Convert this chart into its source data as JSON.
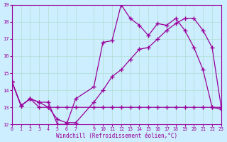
{
  "xlabel": "Windchill (Refroidissement éolien,°C)",
  "background_color": "#cceeff",
  "grid_color": "#b0ddd0",
  "line_color": "#990099",
  "xlim": [
    0,
    23
  ],
  "ylim": [
    12,
    19
  ],
  "xticks": [
    0,
    1,
    2,
    3,
    4,
    5,
    6,
    7,
    9,
    10,
    11,
    12,
    13,
    14,
    15,
    16,
    17,
    18,
    19,
    20,
    21,
    22,
    23
  ],
  "yticks": [
    12,
    13,
    14,
    15,
    16,
    17,
    18,
    19
  ],
  "line1_x": [
    0,
    1,
    2,
    3,
    4,
    5,
    6,
    7,
    9,
    10,
    11,
    12,
    13,
    14,
    15,
    16,
    17,
    18,
    19,
    20,
    21,
    22,
    23
  ],
  "line1_y": [
    14.5,
    13.1,
    13.5,
    13.0,
    13.0,
    13.0,
    13.0,
    13.0,
    13.0,
    13.0,
    13.0,
    13.0,
    13.0,
    13.0,
    13.0,
    13.0,
    13.0,
    13.0,
    13.0,
    13.0,
    13.0,
    13.0,
    13.0
  ],
  "line2_x": [
    0,
    1,
    2,
    3,
    4,
    5,
    6,
    7,
    9,
    10,
    11,
    12,
    13,
    14,
    15,
    16,
    17,
    18,
    19,
    20,
    21,
    22,
    23
  ],
  "line2_y": [
    14.5,
    13.1,
    13.5,
    13.3,
    13.3,
    12.0,
    12.0,
    13.5,
    14.2,
    16.8,
    16.9,
    19.0,
    18.2,
    17.8,
    17.2,
    17.9,
    17.8,
    18.2,
    17.5,
    16.5,
    15.2,
    13.0,
    12.9
  ],
  "line3_x": [
    0,
    1,
    2,
    3,
    4,
    5,
    6,
    7,
    9,
    10,
    11,
    12,
    13,
    14,
    15,
    16,
    17,
    18,
    19,
    20,
    21,
    22,
    23
  ],
  "line3_y": [
    14.5,
    13.1,
    13.5,
    13.3,
    13.0,
    12.3,
    12.1,
    12.1,
    13.3,
    14.0,
    14.8,
    15.2,
    15.8,
    16.4,
    16.5,
    17.0,
    17.5,
    17.9,
    18.2,
    18.2,
    17.5,
    16.5,
    13.0
  ]
}
